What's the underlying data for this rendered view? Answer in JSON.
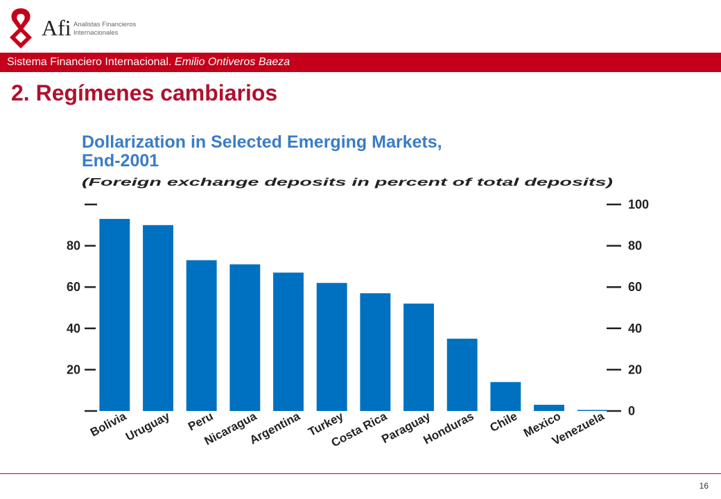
{
  "header": {
    "brand": "Afi",
    "brand_line1": "Analistas Financieros",
    "brand_line2": "Internacionales",
    "banner_text": "Sistema Financiero Internacional.",
    "banner_author": "Emilio Ontiveros Baeza"
  },
  "slide": {
    "title": "2. Regímenes cambiarios",
    "page_number": "16"
  },
  "colors": {
    "accent": "#c4001a",
    "title": "#b0102e",
    "chart_title": "#3a7cc6",
    "bar": "#0070c0"
  },
  "chart_data": {
    "type": "bar",
    "title_line1": "Dollarization in Selected Emerging Markets,",
    "title_line2": "End-2001",
    "subtitle": "(Foreign exchange deposits in percent of total deposits)",
    "categories": [
      "Bolivia",
      "Uruguay",
      "Peru",
      "Nicaragua",
      "Argentina",
      "Turkey",
      "Costa Rica",
      "Paraguay",
      "Honduras",
      "Chile",
      "Mexico",
      "Venezuela"
    ],
    "values": [
      93,
      90,
      73,
      71,
      67,
      62,
      57,
      52,
      35,
      14,
      3,
      0.5
    ],
    "ylim": [
      0,
      100
    ],
    "left_ticks": [
      20,
      40,
      60,
      80
    ],
    "right_ticks": [
      0,
      20,
      40,
      60,
      80,
      100
    ],
    "xlabel": "",
    "ylabel": ""
  }
}
